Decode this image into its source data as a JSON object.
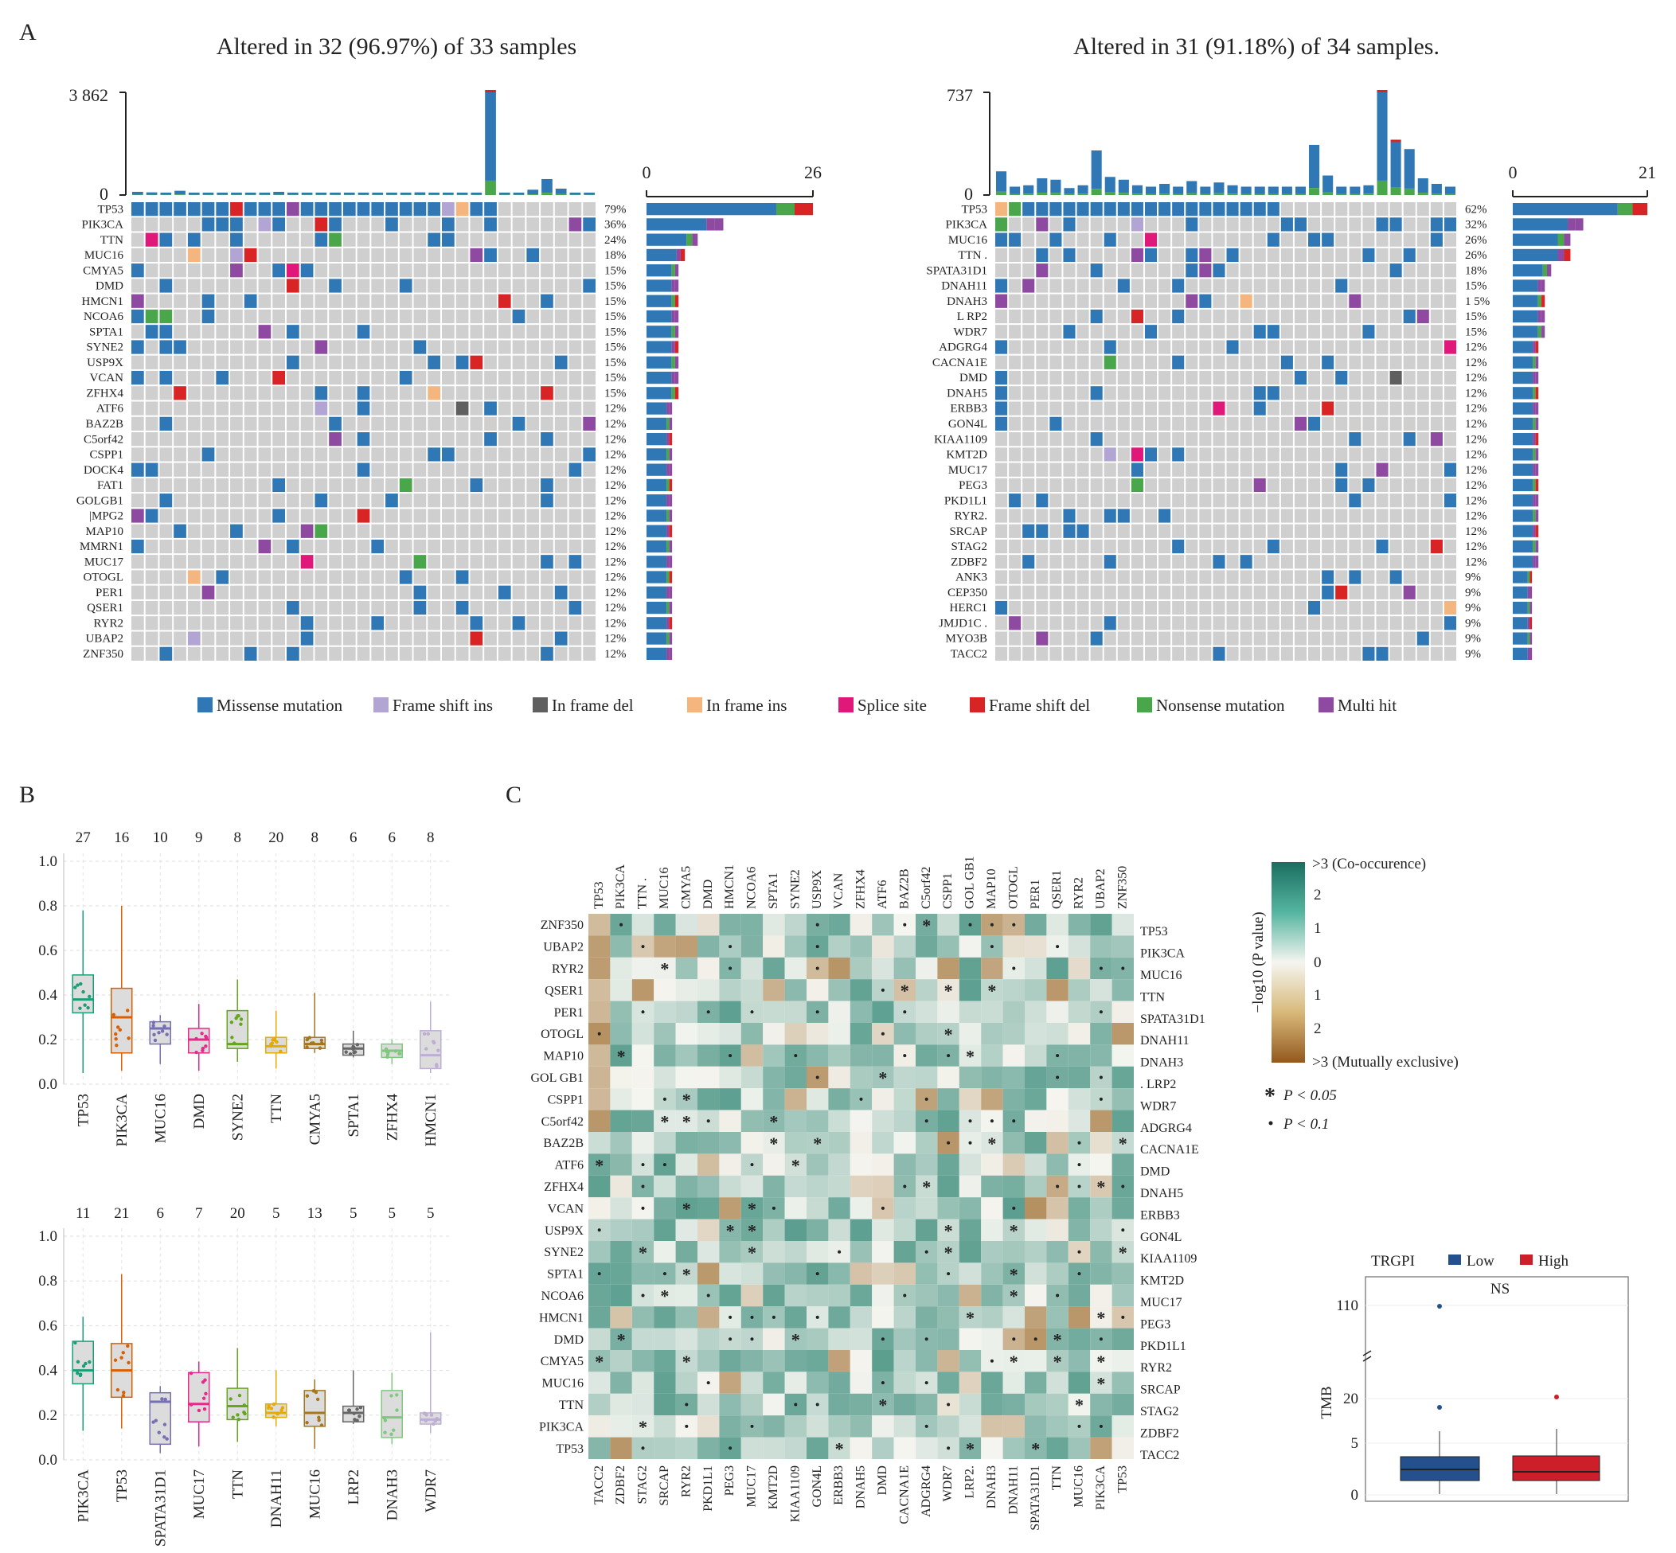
{
  "panel_labels": {
    "a": "A",
    "b": "B",
    "c": "C"
  },
  "colors": {
    "missense": "#2f78b5",
    "frame_shift_ins": "#b3a5d3",
    "in_frame_del": "#5f5f5f",
    "in_frame_ins": "#f4b57e",
    "splice_site": "#e0187a",
    "frame_shift_del": "#d82424",
    "nonsense": "#4aa64a",
    "multi_hit": "#8e4aa0",
    "none": "#cfcfcf",
    "co": "#1a7a66",
    "mutex": "#9a6624"
  },
  "legend": [
    "Missense mutation",
    "Frame shift ins",
    "In frame del",
    "In frame ins",
    "Splice site",
    "Frame shift del",
    "Nonsense mutation",
    "Multi hit"
  ],
  "chart_data": [
    {
      "type": "heatmap",
      "title": "Altered in 32 (96.97%) of 33 samples",
      "tmb_ymax": "3 862",
      "tmb_ymin": "0",
      "bar_max": "26",
      "bar_min": "0",
      "samples": 33,
      "genes": [
        "TP53",
        "PIK3CA",
        "TTN",
        "MUC16",
        "CMYA5",
        "DMD",
        "HMCN1",
        "NCOA6",
        "SPTA1",
        "SYNE2",
        "USP9X",
        "VCAN",
        "ZFHX4",
        "ATF6",
        "BAZ2B",
        "C5orf42",
        "CSPP1",
        "DOCK4",
        "FAT1",
        "GOLGB1",
        "|MPG2",
        "MAP10",
        "MMRN1",
        "MUC17",
        "OTOGL",
        "PER1",
        "QSER1",
        "RYR2",
        "UBAP2",
        "ZNF350"
      ],
      "percents": [
        "79%",
        "36%",
        "24%",
        "18%",
        "15%",
        "15%",
        "15%",
        "15%",
        "15%",
        "15%",
        "15%",
        "15%",
        "15%",
        "12%",
        "12%",
        "12%",
        "12%",
        "12%",
        "12%",
        "12%",
        "12%",
        "12%",
        "12%",
        "12%",
        "12%",
        "12%",
        "12%",
        "12%",
        "12%",
        "12%"
      ],
      "counts": [
        26,
        12,
        8,
        6,
        5,
        5,
        5,
        5,
        5,
        5,
        5,
        5,
        5,
        4,
        4,
        4,
        4,
        4,
        4,
        4,
        4,
        4,
        4,
        4,
        4,
        4,
        4,
        4,
        4,
        4
      ],
      "tmb": [
        120,
        100,
        90,
        160,
        90,
        80,
        90,
        90,
        80,
        90,
        120,
        80,
        80,
        80,
        90,
        80,
        60,
        60,
        60,
        80,
        100,
        60,
        60,
        60,
        60,
        3862,
        80,
        60,
        200,
        600,
        240,
        60,
        60
      ]
    },
    {
      "type": "heatmap",
      "title": "Altered in 31 (91.18%) of 34 samples.",
      "tmb_ymax": "737",
      "tmb_ymin": "0",
      "bar_max": "21",
      "bar_min": "0",
      "samples": 34,
      "genes": [
        "TP53",
        "PIK3CA",
        "MUC16",
        "TTN .",
        "SPATA31D1",
        "DNAH11",
        "DNAH3",
        "L RP2",
        "WDR7",
        "ADGRG4",
        "CACNA1E",
        "DMD",
        "DNAH5",
        "ERBB3",
        "GON4L",
        "KIAA1109",
        "KMT2D",
        "MUC17",
        "PEG3",
        "PKD1L1",
        "RYR2.",
        "SRCAP",
        "STAG2",
        "ZDBF2",
        "ANK3",
        "CEP350",
        "HERC1",
        "JMJD1C .",
        "MYO3B",
        "TACC2"
      ],
      "percents": [
        "62%",
        "32%",
        "26%",
        "26%",
        "18%",
        "15%",
        "1 5%",
        "15%",
        "15%",
        "12%",
        "12%",
        "12%",
        "12%",
        "12%",
        "12%",
        "12%",
        "12%",
        "12%",
        "12%",
        "12%",
        "12%",
        "12%",
        "12%",
        "12%",
        "9%",
        "9%",
        "9%",
        "9%",
        "9%",
        "9%"
      ],
      "counts": [
        21,
        11,
        9,
        9,
        6,
        5,
        5,
        5,
        5,
        4,
        4,
        4,
        4,
        4,
        4,
        4,
        4,
        4,
        4,
        4,
        4,
        4,
        4,
        4,
        3,
        3,
        3,
        3,
        3,
        3
      ],
      "tmb": [
        170,
        60,
        70,
        120,
        110,
        50,
        70,
        320,
        130,
        110,
        70,
        60,
        80,
        60,
        100,
        60,
        90,
        70,
        60,
        60,
        60,
        60,
        60,
        360,
        140,
        60,
        60,
        70,
        737,
        380,
        330,
        120,
        80,
        60
      ]
    },
    {
      "type": "box",
      "ylim": [
        0,
        1.0
      ],
      "yticks": [
        "1.0",
        "0.8",
        "0.6",
        "0.4",
        "0.2",
        "0.0"
      ],
      "categories": [
        "TP53",
        "PIK3CA",
        "MUC16",
        "DMD",
        "SYNE2",
        "TTN",
        "CMYA5",
        "SPTA1",
        "ZFHX4",
        "HMCN1"
      ],
      "n": [
        "27",
        "16",
        "10",
        "9",
        "8",
        "20",
        "8",
        "6",
        "6",
        "8"
      ],
      "box_colors": [
        "#1b9e77",
        "#d95f02",
        "#7570b3",
        "#e7298a",
        "#66a61e",
        "#e6ab02",
        "#a6761d",
        "#666666",
        "#7fc97f",
        "#beaed4"
      ],
      "stats": [
        [
          0.05,
          0.32,
          0.38,
          0.49,
          0.78
        ],
        [
          0.06,
          0.14,
          0.3,
          0.43,
          0.8
        ],
        [
          0.09,
          0.18,
          0.25,
          0.28,
          0.31
        ],
        [
          0.06,
          0.14,
          0.2,
          0.25,
          0.36
        ],
        [
          0.1,
          0.16,
          0.18,
          0.33,
          0.47
        ],
        [
          0.07,
          0.14,
          0.17,
          0.21,
          0.33
        ],
        [
          0.14,
          0.16,
          0.18,
          0.21,
          0.41
        ],
        [
          0.12,
          0.13,
          0.16,
          0.18,
          0.24
        ],
        [
          0.09,
          0.12,
          0.15,
          0.18,
          0.2
        ],
        [
          0.05,
          0.07,
          0.13,
          0.24,
          0.37
        ]
      ]
    },
    {
      "type": "box",
      "ylim": [
        0,
        1.0
      ],
      "yticks": [
        "1.0",
        "0.8",
        "0.6",
        "0.4",
        "0.2",
        "0.0"
      ],
      "categories": [
        "PIK3CA",
        "TP53",
        "SPATA31D1",
        "MUC17",
        "TTN",
        "DNAH11",
        "MUC16",
        "LRP2",
        "DNAH3",
        "WDR7"
      ],
      "n": [
        "11",
        "21",
        "6",
        "7",
        "20",
        "5",
        "13",
        "5",
        "5",
        "5"
      ],
      "box_colors": [
        "#1b9e77",
        "#d95f02",
        "#7570b3",
        "#e7298a",
        "#66a61e",
        "#e6ab02",
        "#a6761d",
        "#666666",
        "#7fc97f",
        "#beaed4"
      ],
      "stats": [
        [
          0.13,
          0.34,
          0.4,
          0.53,
          0.64
        ],
        [
          0.14,
          0.28,
          0.4,
          0.52,
          0.83
        ],
        [
          0.03,
          0.07,
          0.26,
          0.3,
          0.33
        ],
        [
          0.06,
          0.17,
          0.25,
          0.39,
          0.44
        ],
        [
          0.08,
          0.18,
          0.24,
          0.32,
          0.5
        ],
        [
          0.15,
          0.19,
          0.21,
          0.25,
          0.4
        ],
        [
          0.05,
          0.15,
          0.21,
          0.31,
          0.36
        ],
        [
          0.16,
          0.17,
          0.21,
          0.24,
          0.4
        ],
        [
          0.07,
          0.1,
          0.19,
          0.31,
          0.39
        ],
        [
          0.12,
          0.16,
          0.18,
          0.21,
          0.57
        ]
      ]
    },
    {
      "type": "heatmap",
      "row_labels": [
        "ZNF350",
        "UBAP2",
        "RYR2",
        "QSER1",
        "PER1",
        "OTOGL",
        "MAP10",
        "GOL GB1",
        "CSPP1",
        "C5orf42",
        "BAZ2B",
        "ATF6",
        "ZFHX4",
        "VCAN",
        "USP9X",
        "SYNE2",
        "SPTA1",
        "NCOA6",
        "HMCN1",
        "DMD",
        "CMYA5",
        "MUC16",
        "TTN",
        "PIK3CA",
        "TP53"
      ],
      "top_labels": [
        "TP53",
        "PIK3CA",
        "TTN .",
        "MUC16",
        "CMYA5",
        "DMD",
        "HMCN1",
        "NCOA6",
        "SPTA1",
        "SYNE2",
        "USP9X",
        "VCAN",
        "ZFHX4",
        "ATF6",
        "BAZ2B",
        "C5orf42",
        "CSPP1",
        "GOL GB1",
        "MAP10",
        "OTOGL",
        "PER1",
        "QSER1",
        "RYR2",
        "UBAP2",
        "ZNF350"
      ],
      "right_labels": [
        "TP53",
        "PIK3CA",
        "MUC16",
        "TTN",
        "SPATA31D1",
        "DNAH11",
        "DNAH3",
        ". LRP2",
        "WDR7",
        "ADGRG4",
        "CACNA1E",
        "DMD",
        "DNAH5",
        "ERBB3",
        "GON4L",
        "KIAA1109",
        "KMT2D",
        "MUC17",
        "PEG3",
        "PKD1L1",
        "RYR2",
        "SRCAP",
        "STAG2",
        "ZDBF2",
        "TACC2"
      ],
      "bottom_labels": [
        "TACC2",
        "ZDBF2",
        "STAG2",
        "SRCAP",
        "RYR2",
        "PKD1L1",
        "PEG3",
        "MUC17",
        "KMT2D",
        "KIAA1109",
        "GON4L",
        "ERBB3",
        "DNAH5",
        "DMD",
        "CACNA1E",
        "ADGRG4",
        "WDR7",
        "LRP2.",
        "DNAH3",
        "DNAH11",
        "SPATA31D1",
        "TTN",
        "MUC16",
        "PIK3CA",
        "TP53"
      ]
    },
    {
      "type": "box",
      "title": "NS",
      "legend_title": "TRGPI",
      "series": [
        {
          "name": "Low",
          "color": "#24508e"
        },
        {
          "name": "High",
          "color": "#cc1f2a"
        }
      ],
      "ylabel": "TMB",
      "yticks": [
        "110",
        "20",
        "5",
        "0"
      ]
    }
  ],
  "heat_legend": {
    "top": ">3 (Co-occurence)",
    "bottom": ">3 (Mutually exclusive)",
    "axis": "−log10 (P value)",
    "ticks": [
      "2",
      "1",
      "0",
      "1",
      "2"
    ],
    "p05": "P < 0.05",
    "p10": "P < 0.1"
  }
}
